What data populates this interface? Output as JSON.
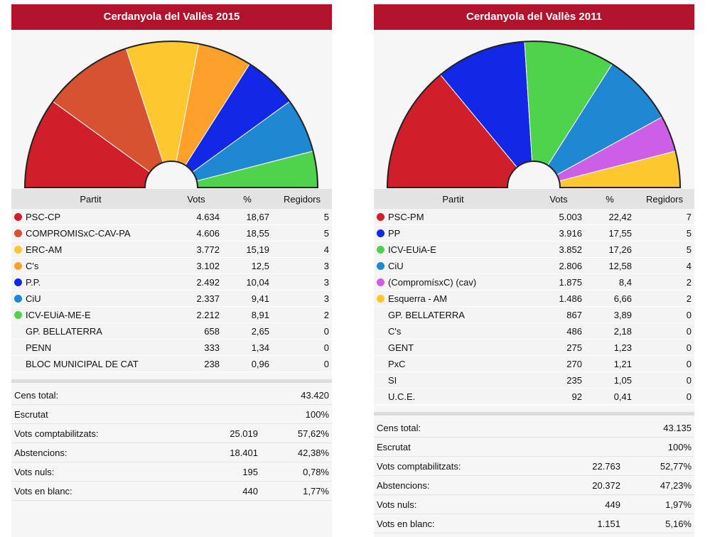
{
  "headers": {
    "party": "Partit",
    "votes": "Vots",
    "pct": "%",
    "seats": "Regidors"
  },
  "panels": [
    {
      "title": "Cerdanyola del Vallès 2015",
      "parties": [
        {
          "name": "PSC-CP",
          "votes": "4.634",
          "pct": "18,67",
          "seats": "5",
          "color": "#d01e2a"
        },
        {
          "name": "COMPROMISxC-CAV-PA",
          "votes": "4.606",
          "pct": "18,55",
          "seats": "5",
          "color": "#d65230"
        },
        {
          "name": "ERC-AM",
          "votes": "3.772",
          "pct": "15,19",
          "seats": "4",
          "color": "#fdc72f"
        },
        {
          "name": "C's",
          "votes": "3.102",
          "pct": "12,5",
          "seats": "3",
          "color": "#fda12c"
        },
        {
          "name": "P.P.",
          "votes": "2.492",
          "pct": "10,04",
          "seats": "3",
          "color": "#1328e6"
        },
        {
          "name": "CiU",
          "votes": "2.337",
          "pct": "9,41",
          "seats": "3",
          "color": "#1f88d2"
        },
        {
          "name": "ICV-EUiA-ME-E",
          "votes": "2.212",
          "pct": "8,91",
          "seats": "2",
          "color": "#4fd24c"
        },
        {
          "name": "GP. BELLATERRA",
          "votes": "658",
          "pct": "2,65",
          "seats": "0",
          "color": ""
        },
        {
          "name": "PENN",
          "votes": "333",
          "pct": "1,34",
          "seats": "0",
          "color": ""
        },
        {
          "name": "BLOC MUNICIPAL DE CAT",
          "votes": "238",
          "pct": "0,96",
          "seats": "0",
          "color": ""
        }
      ],
      "summary": [
        {
          "label": "Cens total:",
          "value": "",
          "pct": "43.420"
        },
        {
          "label": "Escrutat",
          "value": "",
          "pct": "100%"
        },
        {
          "label": "Vots comptabilitzats:",
          "value": "25.019",
          "pct": "57,62%"
        },
        {
          "label": "Abstencions:",
          "value": "18.401",
          "pct": "42,38%"
        },
        {
          "label": "Vots nuls:",
          "value": "195",
          "pct": "0,78%"
        },
        {
          "label": "Vots en blanc:",
          "value": "440",
          "pct": "1,77%"
        }
      ]
    },
    {
      "title": "Cerdanyola del Vallès 2011",
      "parties": [
        {
          "name": "PSC-PM",
          "votes": "5.003",
          "pct": "22,42",
          "seats": "7",
          "color": "#d01e2a"
        },
        {
          "name": "PP",
          "votes": "3.916",
          "pct": "17,55",
          "seats": "5",
          "color": "#1328e6"
        },
        {
          "name": "ICV-EUiA-E",
          "votes": "3.852",
          "pct": "17,26",
          "seats": "5",
          "color": "#4fd24c"
        },
        {
          "name": "CiU",
          "votes": "2.806",
          "pct": "12,58",
          "seats": "4",
          "color": "#1f88d2"
        },
        {
          "name": "(CompromísxC) (cav)",
          "votes": "1.875",
          "pct": "8,4",
          "seats": "2",
          "color": "#cc5ee8"
        },
        {
          "name": "Esquerra - AM",
          "votes": "1.486",
          "pct": "6,66",
          "seats": "2",
          "color": "#fdc72f"
        },
        {
          "name": "GP. BELLATERRA",
          "votes": "867",
          "pct": "3,89",
          "seats": "0",
          "color": ""
        },
        {
          "name": "C's",
          "votes": "486",
          "pct": "2,18",
          "seats": "0",
          "color": ""
        },
        {
          "name": "GENT",
          "votes": "275",
          "pct": "1,23",
          "seats": "0",
          "color": ""
        },
        {
          "name": "PxC",
          "votes": "270",
          "pct": "1,21",
          "seats": "0",
          "color": ""
        },
        {
          "name": "SI",
          "votes": "235",
          "pct": "1,05",
          "seats": "0",
          "color": ""
        },
        {
          "name": "U.C.E.",
          "votes": "92",
          "pct": "0,41",
          "seats": "0",
          "color": ""
        }
      ],
      "summary": [
        {
          "label": "Cens total:",
          "value": "",
          "pct": "43.135"
        },
        {
          "label": "Escrutat",
          "value": "",
          "pct": "100%"
        },
        {
          "label": "Vots comptabilitzats:",
          "value": "22.763",
          "pct": "52,77%"
        },
        {
          "label": "Abstencions:",
          "value": "20.372",
          "pct": "47,23%"
        },
        {
          "label": "Vots nuls:",
          "value": "449",
          "pct": "1,97%"
        },
        {
          "label": "Vots en blanc:",
          "value": "1.151",
          "pct": "5,16%"
        }
      ]
    }
  ]
}
